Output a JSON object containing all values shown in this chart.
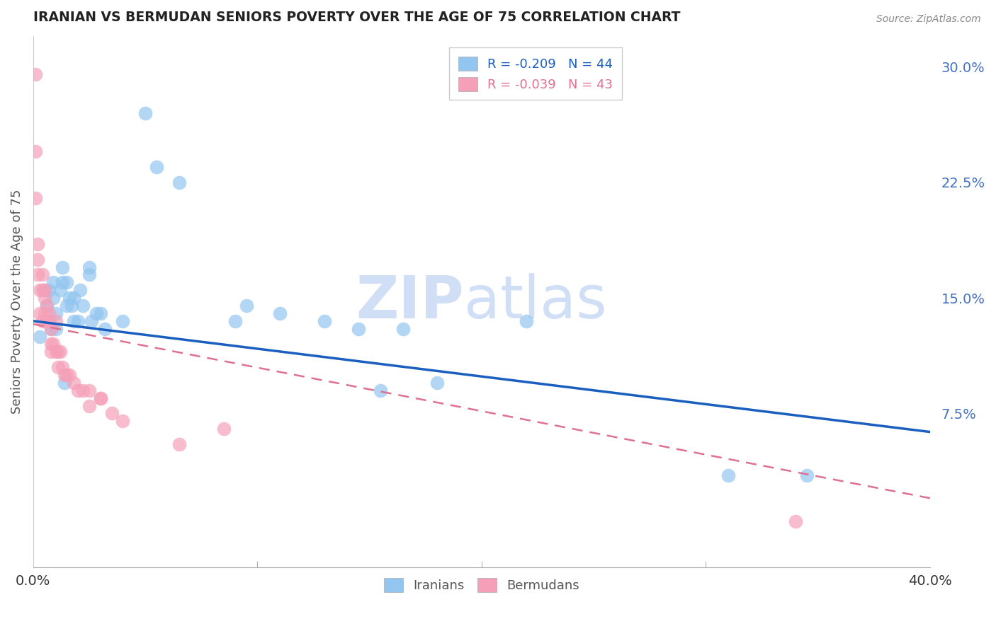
{
  "title": "IRANIAN VS BERMUDAN SENIORS POVERTY OVER THE AGE OF 75 CORRELATION CHART",
  "source": "Source: ZipAtlas.com",
  "ylabel": "Seniors Poverty Over the Age of 75",
  "yticks": [
    0.0,
    0.075,
    0.15,
    0.225,
    0.3
  ],
  "ytick_labels": [
    "",
    "7.5%",
    "15.0%",
    "22.5%",
    "30.0%"
  ],
  "xmin": 0.0,
  "xmax": 0.4,
  "ymin": -0.025,
  "ymax": 0.32,
  "iranian_R": -0.209,
  "iranian_N": 44,
  "bermudan_R": -0.039,
  "bermudan_N": 43,
  "iranian_color": "#92C5F0",
  "bermudan_color": "#F5A0B8",
  "trendline_iranian_color": "#1A5FBF",
  "trendline_bermudan_color": "#E07090",
  "watermark_color": "#D0DFF5",
  "title_color": "#222222",
  "axis_label_color": "#555555",
  "ytick_color": "#4472C4",
  "grid_color": "#CCCCCC",
  "iranians_x": [
    0.003,
    0.005,
    0.006,
    0.007,
    0.007,
    0.008,
    0.009,
    0.009,
    0.01,
    0.01,
    0.012,
    0.013,
    0.013,
    0.014,
    0.015,
    0.015,
    0.016,
    0.017,
    0.018,
    0.018,
    0.02,
    0.021,
    0.022,
    0.025,
    0.025,
    0.026,
    0.028,
    0.03,
    0.032,
    0.04,
    0.05,
    0.055,
    0.065,
    0.09,
    0.095,
    0.11,
    0.13,
    0.145,
    0.155,
    0.165,
    0.18,
    0.22,
    0.31,
    0.345
  ],
  "iranians_y": [
    0.125,
    0.155,
    0.145,
    0.135,
    0.155,
    0.13,
    0.15,
    0.16,
    0.14,
    0.13,
    0.155,
    0.17,
    0.16,
    0.095,
    0.16,
    0.145,
    0.15,
    0.145,
    0.15,
    0.135,
    0.135,
    0.155,
    0.145,
    0.165,
    0.17,
    0.135,
    0.14,
    0.14,
    0.13,
    0.135,
    0.27,
    0.235,
    0.225,
    0.135,
    0.145,
    0.14,
    0.135,
    0.13,
    0.09,
    0.13,
    0.095,
    0.135,
    0.035,
    0.035
  ],
  "bermudans_x": [
    0.001,
    0.001,
    0.001,
    0.002,
    0.002,
    0.002,
    0.003,
    0.003,
    0.004,
    0.004,
    0.004,
    0.005,
    0.005,
    0.005,
    0.006,
    0.006,
    0.007,
    0.007,
    0.008,
    0.008,
    0.008,
    0.009,
    0.01,
    0.01,
    0.011,
    0.011,
    0.012,
    0.013,
    0.014,
    0.015,
    0.016,
    0.018,
    0.02,
    0.022,
    0.025,
    0.025,
    0.03,
    0.03,
    0.035,
    0.04,
    0.065,
    0.085,
    0.34
  ],
  "bermudans_y": [
    0.295,
    0.245,
    0.215,
    0.175,
    0.165,
    0.185,
    0.155,
    0.14,
    0.165,
    0.155,
    0.135,
    0.155,
    0.15,
    0.14,
    0.145,
    0.135,
    0.135,
    0.14,
    0.13,
    0.12,
    0.115,
    0.12,
    0.115,
    0.135,
    0.105,
    0.115,
    0.115,
    0.105,
    0.1,
    0.1,
    0.1,
    0.095,
    0.09,
    0.09,
    0.08,
    0.09,
    0.085,
    0.085,
    0.075,
    0.07,
    0.055,
    0.065,
    0.005
  ],
  "trendline_iranian_x0": 0.0,
  "trendline_iranian_y0": 0.135,
  "trendline_iranian_x1": 0.4,
  "trendline_iranian_y1": 0.063,
  "trendline_bermudan_x0": 0.0,
  "trendline_bermudan_y0": 0.133,
  "trendline_bermudan_x1": 0.4,
  "trendline_bermudan_y1": 0.02
}
